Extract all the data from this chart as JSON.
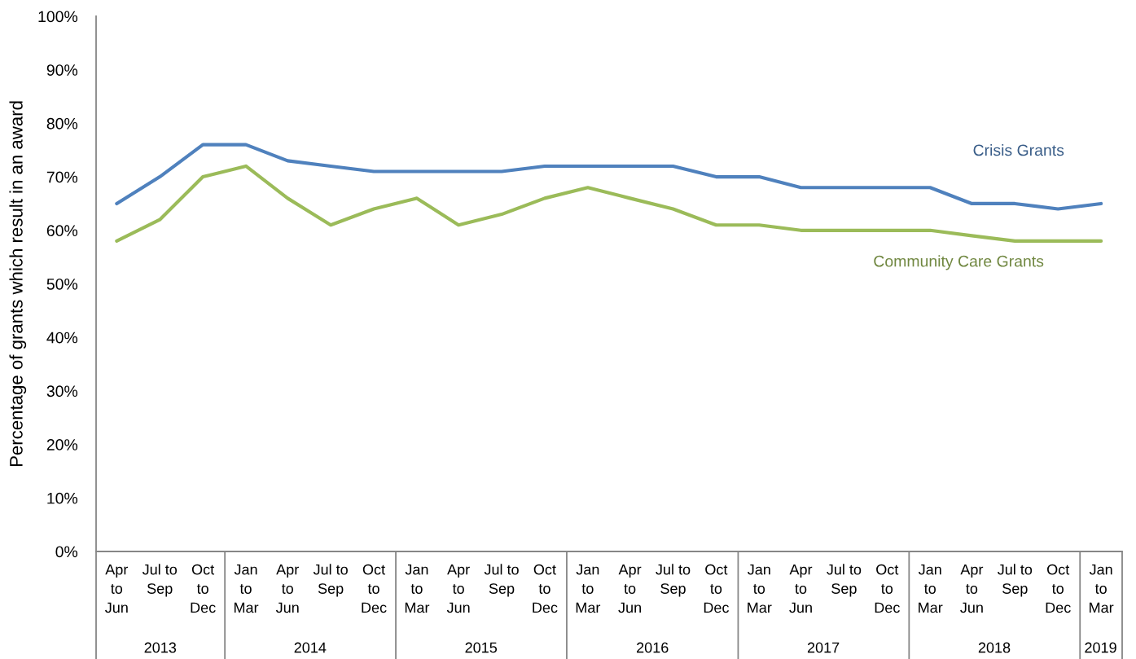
{
  "chart_data": {
    "type": "line",
    "ylabel": "Percentage of grants which result in an award",
    "x": [
      "2013-05-15",
      "2013-08-15",
      "2013-11-15",
      "2014-02-15",
      "2014-05-15",
      "2014-08-15",
      "2014-11-15",
      "2015-02-15",
      "2015-05-15",
      "2015-08-15",
      "2015-11-15",
      "2016-02-15",
      "2016-05-15",
      "2016-08-15",
      "2016-11-15",
      "2017-02-15",
      "2017-05-15",
      "2017-08-15",
      "2017-11-15",
      "2018-02-15",
      "2018-05-15",
      "2018-08-15",
      "2018-11-15",
      "2019-02-15"
    ],
    "xlim": [
      "2013-04-01",
      "2019-04-01"
    ],
    "xticks": [
      {
        "value": "2013-05-15",
        "label": "Apr\nto\nJun"
      },
      {
        "value": "2013-08-15",
        "label": "Jul to\nSep"
      },
      {
        "value": "2013-11-15",
        "label": "Oct\nto\nDec"
      },
      {
        "value": "2014-02-15",
        "label": "Jan\nto\nMar"
      },
      {
        "value": "2014-05-15",
        "label": "Apr\nto\nJun"
      },
      {
        "value": "2014-08-15",
        "label": "Jul to\nSep"
      },
      {
        "value": "2014-11-15",
        "label": "Oct\nto\nDec"
      },
      {
        "value": "2015-02-15",
        "label": "Jan\nto\nMar"
      },
      {
        "value": "2015-05-15",
        "label": "Apr\nto\nJun"
      },
      {
        "value": "2015-08-15",
        "label": "Jul to\nSep"
      },
      {
        "value": "2015-11-15",
        "label": "Oct\nto\nDec"
      },
      {
        "value": "2016-02-15",
        "label": "Jan\nto\nMar"
      },
      {
        "value": "2016-05-15",
        "label": "Apr\nto\nJun"
      },
      {
        "value": "2016-08-15",
        "label": "Jul to\nSep"
      },
      {
        "value": "2016-11-15",
        "label": "Oct\nto\nDec"
      },
      {
        "value": "2017-02-15",
        "label": "Jan\nto\nMar"
      },
      {
        "value": "2017-05-15",
        "label": "Apr\nto\nJun"
      },
      {
        "value": "2017-08-15",
        "label": "Jul to\nSep"
      },
      {
        "value": "2017-11-15",
        "label": "Oct\nto\nDec"
      },
      {
        "value": "2018-02-15",
        "label": "Jan\nto\nMar"
      },
      {
        "value": "2018-05-15",
        "label": "Apr\nto\nJun"
      },
      {
        "value": "2018-08-15",
        "label": "Jul to\nSep"
      },
      {
        "value": "2018-11-15",
        "label": "Oct\nto\nDec"
      },
      {
        "value": "2019-02-15",
        "label": "Jan\nto\nMar"
      }
    ],
    "x2lim": [
      "2013-04-01",
      "2019-04-01"
    ],
    "x2ticks": [
      {
        "value": "2013-08-16",
        "label": "2013"
      },
      {
        "value": "2014-07-02",
        "label": "2014"
      },
      {
        "value": "2015-07-02",
        "label": "2015"
      },
      {
        "value": "2016-07-02",
        "label": "2016"
      },
      {
        "value": "2017-07-02",
        "label": "2017"
      },
      {
        "value": "2018-07-02",
        "label": "2018"
      },
      {
        "value": "2019-02-14",
        "label": "2019"
      }
    ],
    "ylim": [
      0,
      100
    ],
    "yticks": [
      {
        "value": 0,
        "label": "0%"
      },
      {
        "value": 10,
        "label": "10%"
      },
      {
        "value": 20,
        "label": "20%"
      },
      {
        "value": 30,
        "label": "30%"
      },
      {
        "value": 40,
        "label": "40%"
      },
      {
        "value": 50,
        "label": "50%"
      },
      {
        "value": 60,
        "label": "60%"
      },
      {
        "value": 70,
        "label": "70%"
      },
      {
        "value": 80,
        "label": "80%"
      },
      {
        "value": 90,
        "label": "90%"
      },
      {
        "value": 100,
        "label": "100%"
      }
    ],
    "series": [
      {
        "name": "Crisis Grants",
        "color": "#4f81bd",
        "values": [
          65,
          70,
          76,
          76,
          73,
          72,
          71,
          71,
          71,
          71,
          72,
          72,
          72,
          72,
          70,
          70,
          68,
          68,
          68,
          68,
          65,
          65,
          64,
          65
        ]
      },
      {
        "name": "Community Care Grants",
        "color": "#9bbb59",
        "values": [
          58,
          62,
          70,
          72,
          66,
          61,
          64,
          66,
          61,
          63,
          66,
          68,
          66,
          64,
          61,
          61,
          60,
          60,
          60,
          60,
          59,
          58,
          58,
          58
        ]
      }
    ],
    "grid": false,
    "legend": false,
    "marker": "none",
    "line_style": "solid"
  }
}
